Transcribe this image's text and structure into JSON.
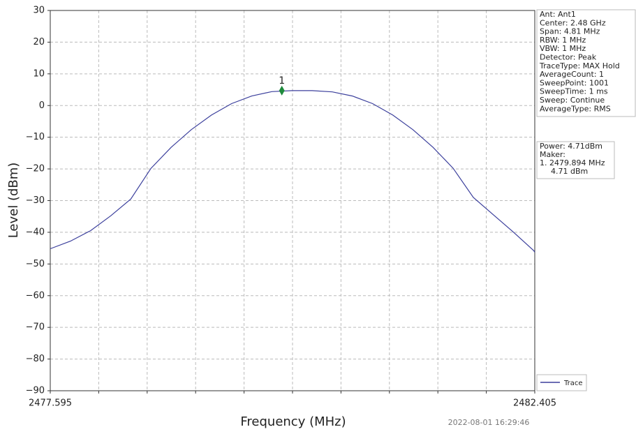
{
  "chart_data": {
    "type": "line",
    "xlabel": "Frequency (MHz)",
    "ylabel": "Level (dBm)",
    "xlim": [
      2477.595,
      2482.405
    ],
    "ylim": [
      -90,
      30
    ],
    "xticks": [
      2477.595,
      {
        "value": 2478.076,
        "label": null
      },
      {
        "value": 2478.557,
        "label": null
      },
      {
        "value": 2479.038,
        "label": null
      },
      {
        "value": 2479.519,
        "label": null
      },
      {
        "value": 2480.0,
        "label": null
      },
      {
        "value": 2480.481,
        "label": null
      },
      {
        "value": 2480.962,
        "label": null
      },
      {
        "value": 2481.443,
        "label": null
      },
      {
        "value": 2481.924,
        "label": null
      },
      2482.405
    ],
    "yticks": [
      {
        "value": -90,
        "label": "−90"
      },
      {
        "value": -80,
        "label": "−80"
      },
      {
        "value": -70,
        "label": "−70"
      },
      {
        "value": -60,
        "label": "−60"
      },
      {
        "value": -50,
        "label": "−50"
      },
      {
        "value": -40,
        "label": "−40"
      },
      {
        "value": -30,
        "label": "−30"
      },
      {
        "value": -20,
        "label": "−20"
      },
      {
        "value": -10,
        "label": "−10"
      },
      0,
      10,
      20,
      30
    ],
    "grid": true,
    "series": [
      {
        "name": "Trace",
        "color": "#3b3f9c",
        "x": [
          2477.595,
          2477.795,
          2477.995,
          2478.195,
          2478.395,
          2478.595,
          2478.795,
          2478.995,
          2479.195,
          2479.395,
          2479.595,
          2479.795,
          2479.995,
          2480.195,
          2480.395,
          2480.595,
          2480.795,
          2480.995,
          2481.195,
          2481.395,
          2481.595,
          2481.795,
          2481.995,
          2482.195,
          2482.395,
          2482.405
        ],
        "values": [
          -45.2,
          -42.8,
          -39.5,
          -34.8,
          -29.5,
          -19.8,
          -13.2,
          -7.6,
          -3.0,
          0.6,
          3.0,
          4.4,
          4.71,
          4.7,
          4.3,
          3.0,
          0.6,
          -3.0,
          -7.6,
          -13.2,
          -19.8,
          -29.0,
          -34.5,
          -40.0,
          -45.8,
          -46.3
        ]
      }
    ],
    "markers": [
      {
        "label": "1",
        "x": 2479.894,
        "y": 4.71,
        "color": "#1e8a3c"
      }
    ],
    "legend": "lower right",
    "info": [
      "Ant: Ant1",
      "Center: 2.48 GHz",
      "Span: 4.81 MHz",
      "RBW: 1 MHz",
      "VBW: 1 MHz",
      "Detector: Peak",
      "TraceType: MAX Hold",
      "AverageCount: 1",
      "SweepPoint: 1001",
      "SweepTime: 1 ms",
      "Sweep: Continue",
      "AverageType: RMS"
    ],
    "marker_info": [
      "Power: 4.71dBm",
      "Maker:",
      "1. 2479.894 MHz",
      "4.71 dBm"
    ],
    "timestamp": "2022-08-01 16:29:46"
  }
}
